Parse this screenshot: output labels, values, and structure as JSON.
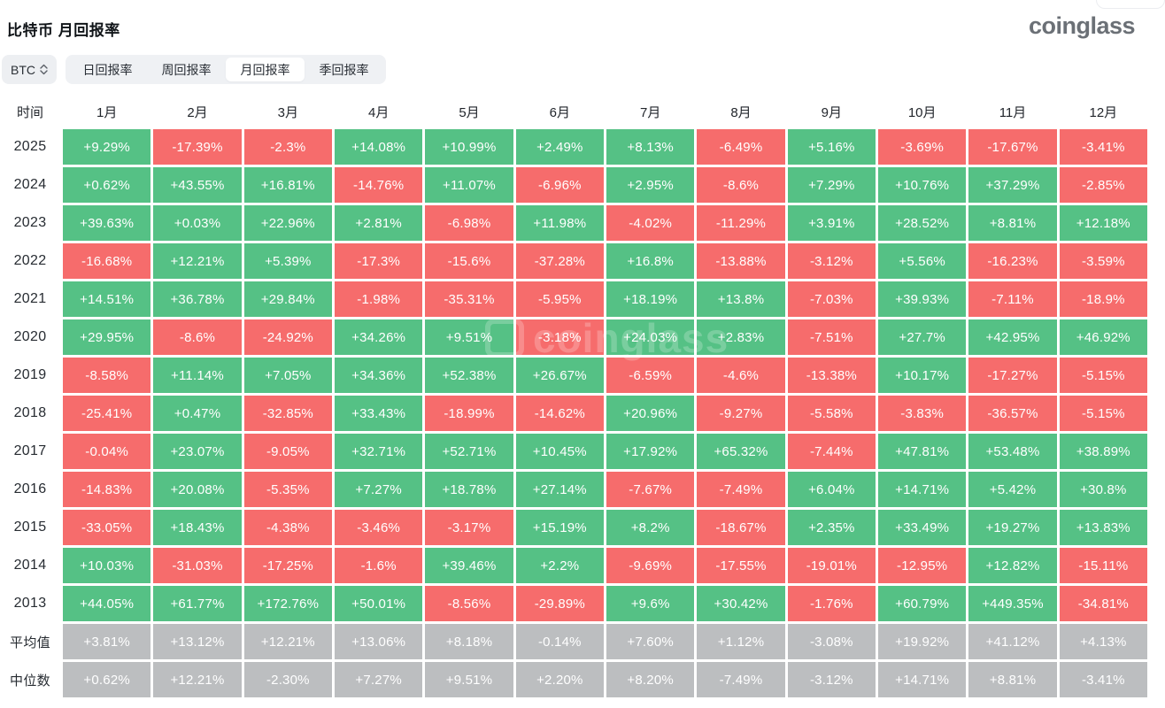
{
  "page": {
    "title": "比特币 月回报率",
    "logo_text": "coinglass",
    "watermark_text": "coinglass"
  },
  "controls": {
    "coin_select": {
      "value": "BTC"
    },
    "tabs": [
      {
        "label": "日回报率",
        "active": false
      },
      {
        "label": "周回报率",
        "active": false
      },
      {
        "label": "月回报率",
        "active": true
      },
      {
        "label": "季回报率",
        "active": false
      }
    ]
  },
  "colors": {
    "positive": "#55c185",
    "negative": "#f66c6c",
    "summary": "#bcbec0",
    "tab_bar_bg": "#eff1f4",
    "active_tab_bg": "#ffffff"
  },
  "chart_data": {
    "type": "heatmap",
    "title": "比特币 月回报率",
    "row_header": "时间",
    "columns": [
      "1月",
      "2月",
      "3月",
      "4月",
      "5月",
      "6月",
      "7月",
      "8月",
      "9月",
      "10月",
      "11月",
      "12月"
    ],
    "rows": [
      {
        "label": "2025",
        "kind": "year",
        "values": [
          "+9.29%",
          "-17.39%",
          "-2.3%",
          "+14.08%",
          "+10.99%",
          "+2.49%",
          "+8.13%",
          "-6.49%",
          "+5.16%",
          "-3.69%",
          "-17.67%",
          "-3.41%"
        ]
      },
      {
        "label": "2024",
        "kind": "year",
        "values": [
          "+0.62%",
          "+43.55%",
          "+16.81%",
          "-14.76%",
          "+11.07%",
          "-6.96%",
          "+2.95%",
          "-8.6%",
          "+7.29%",
          "+10.76%",
          "+37.29%",
          "-2.85%"
        ]
      },
      {
        "label": "2023",
        "kind": "year",
        "values": [
          "+39.63%",
          "+0.03%",
          "+22.96%",
          "+2.81%",
          "-6.98%",
          "+11.98%",
          "-4.02%",
          "-11.29%",
          "+3.91%",
          "+28.52%",
          "+8.81%",
          "+12.18%"
        ]
      },
      {
        "label": "2022",
        "kind": "year",
        "values": [
          "-16.68%",
          "+12.21%",
          "+5.39%",
          "-17.3%",
          "-15.6%",
          "-37.28%",
          "+16.8%",
          "-13.88%",
          "-3.12%",
          "+5.56%",
          "-16.23%",
          "-3.59%"
        ]
      },
      {
        "label": "2021",
        "kind": "year",
        "values": [
          "+14.51%",
          "+36.78%",
          "+29.84%",
          "-1.98%",
          "-35.31%",
          "-5.95%",
          "+18.19%",
          "+13.8%",
          "-7.03%",
          "+39.93%",
          "-7.11%",
          "-18.9%"
        ]
      },
      {
        "label": "2020",
        "kind": "year",
        "values": [
          "+29.95%",
          "-8.6%",
          "-24.92%",
          "+34.26%",
          "+9.51%",
          "-3.18%",
          "+24.03%",
          "+2.83%",
          "-7.51%",
          "+27.7%",
          "+42.95%",
          "+46.92%"
        ]
      },
      {
        "label": "2019",
        "kind": "year",
        "values": [
          "-8.58%",
          "+11.14%",
          "+7.05%",
          "+34.36%",
          "+52.38%",
          "+26.67%",
          "-6.59%",
          "-4.6%",
          "-13.38%",
          "+10.17%",
          "-17.27%",
          "-5.15%"
        ]
      },
      {
        "label": "2018",
        "kind": "year",
        "values": [
          "-25.41%",
          "+0.47%",
          "-32.85%",
          "+33.43%",
          "-18.99%",
          "-14.62%",
          "+20.96%",
          "-9.27%",
          "-5.58%",
          "-3.83%",
          "-36.57%",
          "-5.15%"
        ]
      },
      {
        "label": "2017",
        "kind": "year",
        "values": [
          "-0.04%",
          "+23.07%",
          "-9.05%",
          "+32.71%",
          "+52.71%",
          "+10.45%",
          "+17.92%",
          "+65.32%",
          "-7.44%",
          "+47.81%",
          "+53.48%",
          "+38.89%"
        ]
      },
      {
        "label": "2016",
        "kind": "year",
        "values": [
          "-14.83%",
          "+20.08%",
          "-5.35%",
          "+7.27%",
          "+18.78%",
          "+27.14%",
          "-7.67%",
          "-7.49%",
          "+6.04%",
          "+14.71%",
          "+5.42%",
          "+30.8%"
        ]
      },
      {
        "label": "2015",
        "kind": "year",
        "values": [
          "-33.05%",
          "+18.43%",
          "-4.38%",
          "-3.46%",
          "-3.17%",
          "+15.19%",
          "+8.2%",
          "-18.67%",
          "+2.35%",
          "+33.49%",
          "+19.27%",
          "+13.83%"
        ]
      },
      {
        "label": "2014",
        "kind": "year",
        "values": [
          "+10.03%",
          "-31.03%",
          "-17.25%",
          "-1.6%",
          "+39.46%",
          "+2.2%",
          "-9.69%",
          "-17.55%",
          "-19.01%",
          "-12.95%",
          "+12.82%",
          "-15.11%"
        ]
      },
      {
        "label": "2013",
        "kind": "year",
        "values": [
          "+44.05%",
          "+61.77%",
          "+172.76%",
          "+50.01%",
          "-8.56%",
          "-29.89%",
          "+9.6%",
          "+30.42%",
          "-1.76%",
          "+60.79%",
          "+449.35%",
          "-34.81%"
        ]
      },
      {
        "label": "平均值",
        "kind": "summary",
        "values": [
          "+3.81%",
          "+13.12%",
          "+12.21%",
          "+13.06%",
          "+8.18%",
          "-0.14%",
          "+7.60%",
          "+1.12%",
          "-3.08%",
          "+19.92%",
          "+41.12%",
          "+4.13%"
        ]
      },
      {
        "label": "中位数",
        "kind": "summary",
        "values": [
          "+0.62%",
          "+12.21%",
          "-2.30%",
          "+7.27%",
          "+9.51%",
          "+2.20%",
          "+8.20%",
          "-7.49%",
          "-3.12%",
          "+14.71%",
          "+8.81%",
          "-3.41%"
        ]
      }
    ]
  }
}
